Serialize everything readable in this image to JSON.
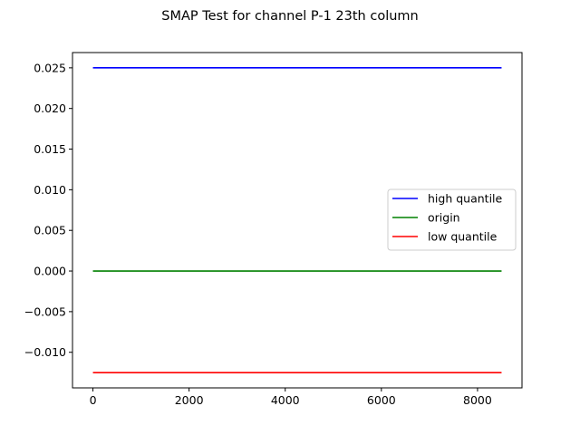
{
  "chart_data": {
    "type": "line",
    "title": "SMAP Test for channel P-1 23th column",
    "xlabel": "",
    "ylabel": "",
    "xlim": [
      -425,
      8925
    ],
    "ylim": [
      -0.01438,
      0.02688
    ],
    "x_ticks": [
      0,
      2000,
      4000,
      6000,
      8000
    ],
    "x_tick_labels": [
      "0",
      "2000",
      "4000",
      "6000",
      "8000"
    ],
    "y_ticks": [
      -0.01,
      -0.005,
      0.0,
      0.005,
      0.01,
      0.015,
      0.02,
      0.025
    ],
    "y_tick_labels": [
      "−0.010",
      "−0.005",
      "0.000",
      "0.005",
      "0.010",
      "0.015",
      "0.020",
      "0.025"
    ],
    "grid": false,
    "legend_position": "center-right",
    "series": [
      {
        "name": "high quantile",
        "color": "#0000ff",
        "x": [
          0,
          8500
        ],
        "y": [
          0.025,
          0.025
        ]
      },
      {
        "name": "origin",
        "color": "#008000",
        "x": [
          0,
          8500
        ],
        "y": [
          0.0,
          0.0
        ]
      },
      {
        "name": "low quantile",
        "color": "#ff0000",
        "x": [
          0,
          8500
        ],
        "y": [
          -0.0125,
          -0.0125
        ]
      }
    ]
  }
}
